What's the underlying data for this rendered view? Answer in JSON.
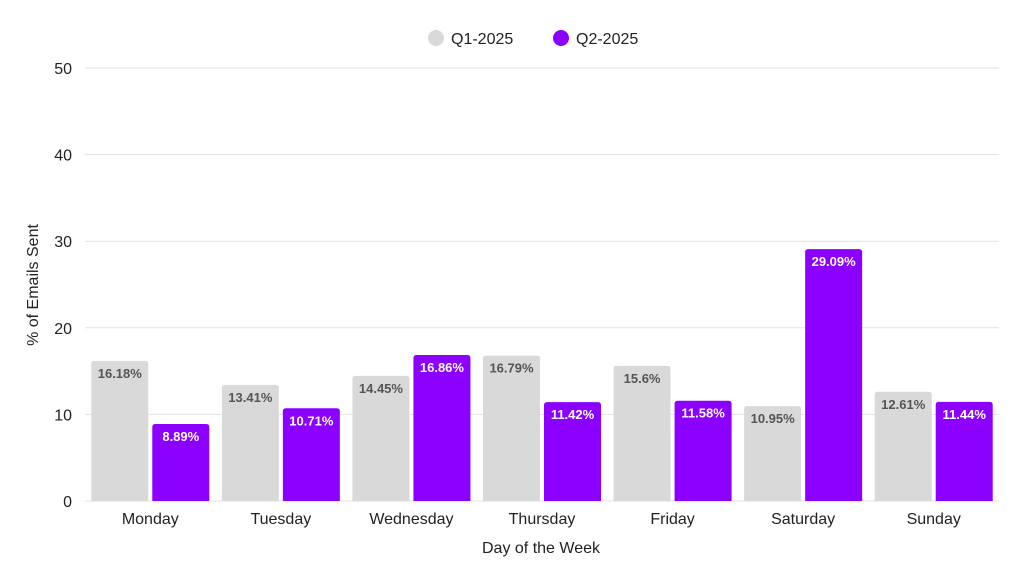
{
  "chart_data": {
    "type": "bar",
    "title": "",
    "xlabel": "Day of the Week",
    "ylabel": "% of Emails Sent",
    "ylim": [
      0,
      50
    ],
    "yticks": [
      0,
      10,
      20,
      30,
      40,
      50
    ],
    "grid": true,
    "legend_position": "top-center",
    "categories": [
      "Monday",
      "Tuesday",
      "Wednesday",
      "Thursday",
      "Friday",
      "Saturday",
      "Sunday"
    ],
    "series": [
      {
        "name": "Q1-2025",
        "color": "#d9d9d9",
        "label_color": "#555555",
        "values": [
          16.18,
          13.41,
          14.45,
          16.79,
          15.6,
          10.95,
          12.61
        ],
        "labels": [
          "16.18%",
          "13.41%",
          "14.45%",
          "16.79%",
          "15.6%",
          "10.95%",
          "12.61%"
        ]
      },
      {
        "name": "Q2-2025",
        "color": "#8b00ff",
        "label_color": "#ffffff",
        "values": [
          8.89,
          10.71,
          16.86,
          11.42,
          11.58,
          29.09,
          11.44
        ],
        "labels": [
          "8.89%",
          "10.71%",
          "16.86%",
          "11.42%",
          "11.58%",
          "29.09%",
          "11.44%"
        ]
      }
    ]
  }
}
